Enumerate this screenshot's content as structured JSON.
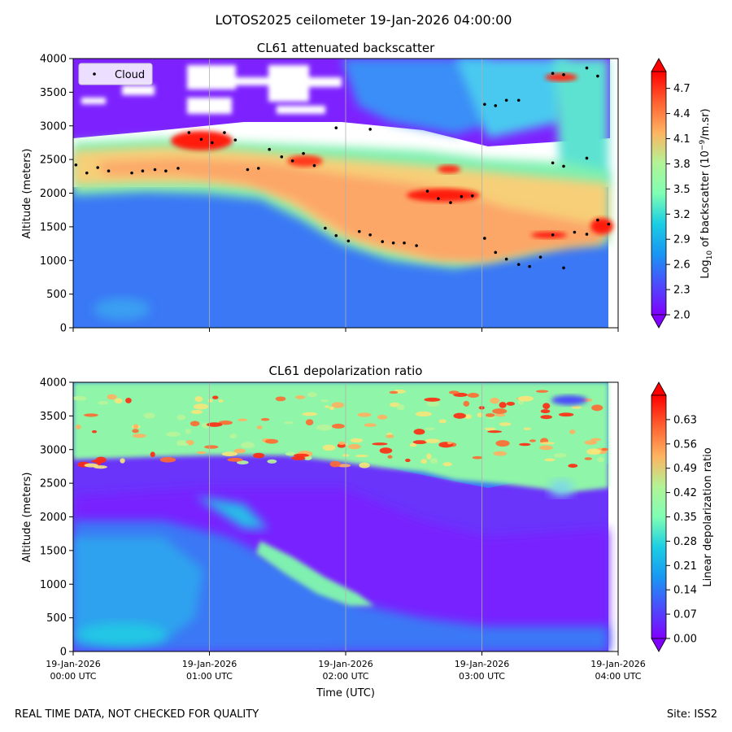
{
  "figure_title": "LOTOS2025 ceilometer 19-Jan-2026 04:00:00",
  "footer_left": "REAL TIME DATA, NOT CHECKED FOR QUALITY",
  "footer_right": "Site: ISS2",
  "chart_data": [
    {
      "type": "heatmap",
      "title": "CL61 attenuated backscatter",
      "ylabel": "Altitude (meters)",
      "xlabel": "",
      "ylim": [
        0,
        4000
      ],
      "xlim_hours": [
        0,
        4
      ],
      "yticks": [
        "0",
        "500",
        "1000",
        "1500",
        "2000",
        "2500",
        "3000",
        "3500",
        "4000"
      ],
      "grid_x": true,
      "legend": {
        "label": "Cloud",
        "placement": "upper-left"
      },
      "colorbar": {
        "label_html": "Log₁₀ of backscatter (10⁻⁹/m.sr)",
        "label_main": "Log",
        "label_sub": "10",
        "label_rest": " of backscatter (10",
        "label_sup": "−9",
        "label_end": "/m.sr)",
        "range": [
          2.0,
          4.9
        ],
        "ticks": [
          "2.0",
          "2.3",
          "2.6",
          "2.9",
          "3.2",
          "3.5",
          "3.8",
          "4.1",
          "4.4",
          "4.7"
        ],
        "extend": "both"
      },
      "cloud_points": [
        {
          "t": 0.02,
          "z": 2420
        },
        {
          "t": 0.1,
          "z": 2300
        },
        {
          "t": 0.18,
          "z": 2380
        },
        {
          "t": 0.26,
          "z": 2330
        },
        {
          "t": 0.43,
          "z": 2300
        },
        {
          "t": 0.51,
          "z": 2330
        },
        {
          "t": 0.6,
          "z": 2350
        },
        {
          "t": 0.68,
          "z": 2330
        },
        {
          "t": 0.77,
          "z": 2370
        },
        {
          "t": 0.85,
          "z": 2900
        },
        {
          "t": 0.94,
          "z": 2800
        },
        {
          "t": 1.02,
          "z": 2750
        },
        {
          "t": 1.11,
          "z": 2900
        },
        {
          "t": 1.19,
          "z": 2790
        },
        {
          "t": 1.28,
          "z": 2350
        },
        {
          "t": 1.36,
          "z": 2370
        },
        {
          "t": 1.44,
          "z": 2650
        },
        {
          "t": 1.53,
          "z": 2540
        },
        {
          "t": 1.61,
          "z": 2480
        },
        {
          "t": 1.69,
          "z": 2590
        },
        {
          "t": 1.77,
          "z": 2410
        },
        {
          "t": 1.85,
          "z": 1480
        },
        {
          "t": 1.93,
          "z": 1370
        },
        {
          "t": 1.93,
          "z": 2970
        },
        {
          "t": 2.02,
          "z": 1290
        },
        {
          "t": 2.1,
          "z": 1430
        },
        {
          "t": 2.18,
          "z": 1380
        },
        {
          "t": 2.18,
          "z": 2950
        },
        {
          "t": 2.27,
          "z": 1280
        },
        {
          "t": 2.35,
          "z": 1260
        },
        {
          "t": 2.43,
          "z": 1260
        },
        {
          "t": 2.52,
          "z": 1220
        },
        {
          "t": 2.6,
          "z": 2030
        },
        {
          "t": 2.68,
          "z": 1920
        },
        {
          "t": 2.77,
          "z": 1860
        },
        {
          "t": 2.85,
          "z": 1950
        },
        {
          "t": 2.93,
          "z": 1960
        },
        {
          "t": 3.02,
          "z": 1330
        },
        {
          "t": 3.02,
          "z": 3320
        },
        {
          "t": 3.1,
          "z": 1120
        },
        {
          "t": 3.1,
          "z": 3300
        },
        {
          "t": 3.18,
          "z": 1020
        },
        {
          "t": 3.18,
          "z": 3380
        },
        {
          "t": 3.27,
          "z": 940
        },
        {
          "t": 3.27,
          "z": 3380
        },
        {
          "t": 3.35,
          "z": 910
        },
        {
          "t": 3.43,
          "z": 1050
        },
        {
          "t": 3.52,
          "z": 1380
        },
        {
          "t": 3.52,
          "z": 2450
        },
        {
          "t": 3.52,
          "z": 3780
        },
        {
          "t": 3.6,
          "z": 890
        },
        {
          "t": 3.6,
          "z": 2400
        },
        {
          "t": 3.6,
          "z": 3760
        },
        {
          "t": 3.68,
          "z": 1420
        },
        {
          "t": 3.77,
          "z": 1390
        },
        {
          "t": 3.77,
          "z": 2520
        },
        {
          "t": 3.77,
          "z": 3860
        },
        {
          "t": 3.85,
          "z": 1600
        },
        {
          "t": 3.85,
          "z": 3740
        },
        {
          "t": 3.93,
          "z": 1540
        }
      ]
    },
    {
      "type": "heatmap",
      "title": "CL61 depolarization ratio",
      "ylabel": "Altitude (meters)",
      "xlabel": "Time (UTC)",
      "ylim": [
        0,
        4000
      ],
      "xlim_hours": [
        0,
        4
      ],
      "yticks": [
        "0",
        "500",
        "1000",
        "1500",
        "2000",
        "2500",
        "3000",
        "3500",
        "4000"
      ],
      "xticks": [
        {
          "date": "19-Jan-2026",
          "time": "00:00 UTC"
        },
        {
          "date": "19-Jan-2026",
          "time": "01:00 UTC"
        },
        {
          "date": "19-Jan-2026",
          "time": "02:00 UTC"
        },
        {
          "date": "19-Jan-2026",
          "time": "03:00 UTC"
        },
        {
          "date": "19-Jan-2026",
          "time": "04:00 UTC"
        }
      ],
      "grid_x": true,
      "colorbar": {
        "label": "Linear depolarization ratio",
        "range": [
          0.0,
          0.7
        ],
        "ticks": [
          "0.00",
          "0.07",
          "0.14",
          "0.21",
          "0.28",
          "0.35",
          "0.42",
          "0.49",
          "0.56",
          "0.63"
        ],
        "extend": "both"
      }
    }
  ]
}
